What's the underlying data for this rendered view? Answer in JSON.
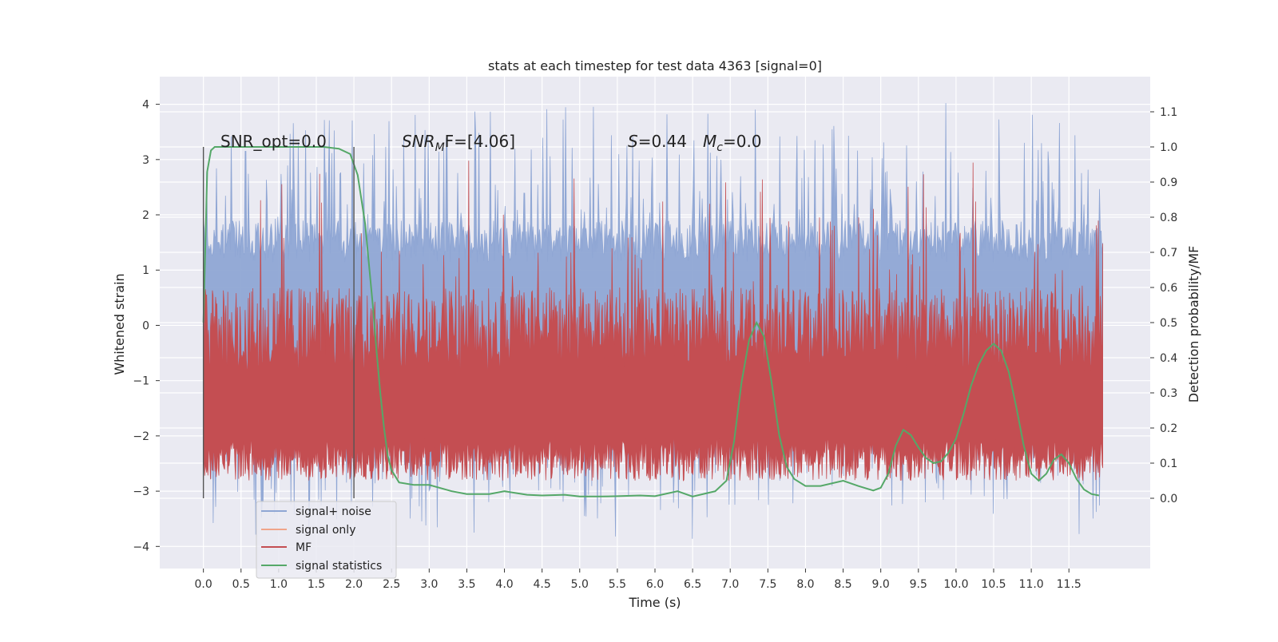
{
  "chart_data": {
    "type": "line",
    "title": "stats at each timestep for test data 4363 [signal=0]",
    "xlabel": "Time (s)",
    "ylabel": "Whitened strain",
    "ylabel_right": "Detection probability/MF",
    "xlim": [
      -0.58,
      12.58
    ],
    "ylim": [
      -4.4,
      4.5
    ],
    "ylim_right": [
      -0.2,
      1.2
    ],
    "x_ticks": [
      "0.0",
      "0.5",
      "1.0",
      "1.5",
      "2.0",
      "2.5",
      "3.0",
      "3.5",
      "4.0",
      "4.5",
      "5.0",
      "5.5",
      "6.0",
      "6.5",
      "7.0",
      "7.5",
      "8.0",
      "8.5",
      "9.0",
      "9.5",
      "10.0",
      "10.5",
      "11.0",
      "11.5"
    ],
    "y_ticks": [
      "4",
      "3",
      "2",
      "1",
      "0",
      "−1",
      "−2",
      "−3",
      "−4"
    ],
    "y_ticks_right": [
      "1.1",
      "1.0",
      "0.9",
      "0.8",
      "0.7",
      "0.6",
      "0.5",
      "0.4",
      "0.3",
      "0.2",
      "0.1",
      "0.0"
    ],
    "grid": true,
    "legend_position": "bottom-left",
    "annotations": {
      "snr_opt": "SNR_opt=0.0",
      "snr_mf_italic": "SNR",
      "snr_mf_sub": "M",
      "snr_mf_rest": "F=[4.06]",
      "s_italic": "S",
      "s_rest": "=0.44",
      "mc_italic": "M",
      "mc_sub": "c",
      "mc_rest": "=0.0"
    },
    "vertical_markers": [
      0.0,
      2.0
    ],
    "noise_envelope": {
      "t_start": 0.0,
      "t_end": 11.95,
      "typical_max": 1.9,
      "typical_min": -1.9,
      "peak_max": 4.1,
      "peak_min": -3.95
    },
    "mf_band": {
      "t_start": 0.0,
      "t_end": 11.95,
      "typical_max": 0.6,
      "typical_min": 0.05,
      "peak_max": 0.98
    },
    "series": [
      {
        "name": "signal+ noise",
        "color": "#8fa6d4"
      },
      {
        "name": "signal only",
        "color": "#f0a58a"
      },
      {
        "name": "MF",
        "color": "#c44e52"
      },
      {
        "name": "signal statistics",
        "color": "#55a868",
        "x": [
          0.0,
          0.05,
          0.1,
          0.15,
          0.25,
          0.4,
          0.8,
          1.2,
          1.6,
          1.8,
          1.95,
          2.05,
          2.15,
          2.25,
          2.3,
          2.35,
          2.4,
          2.45,
          2.5,
          2.6,
          2.8,
          3.0,
          3.3,
          3.5,
          3.8,
          4.0,
          4.3,
          4.5,
          4.8,
          5.0,
          5.3,
          5.5,
          5.8,
          6.0,
          6.3,
          6.5,
          6.8,
          6.95,
          7.05,
          7.15,
          7.25,
          7.35,
          7.45,
          7.55,
          7.65,
          7.75,
          7.85,
          8.0,
          8.2,
          8.5,
          8.7,
          8.9,
          9.0,
          9.1,
          9.2,
          9.3,
          9.4,
          9.5,
          9.6,
          9.7,
          9.8,
          9.9,
          10.0,
          10.1,
          10.2,
          10.3,
          10.4,
          10.5,
          10.6,
          10.7,
          10.8,
          10.9,
          11.0,
          11.1,
          11.2,
          11.3,
          11.4,
          11.5,
          11.6,
          11.7,
          11.8,
          11.9
        ],
        "y": [
          0.5,
          0.93,
          0.99,
          1.0,
          1.0,
          1.0,
          1.0,
          1.0,
          1.0,
          0.995,
          0.98,
          0.92,
          0.78,
          0.55,
          0.42,
          0.3,
          0.2,
          0.12,
          0.08,
          0.045,
          0.038,
          0.038,
          0.02,
          0.012,
          0.012,
          0.02,
          0.01,
          0.008,
          0.01,
          0.005,
          0.005,
          0.006,
          0.008,
          0.006,
          0.02,
          0.005,
          0.02,
          0.05,
          0.16,
          0.33,
          0.45,
          0.5,
          0.46,
          0.33,
          0.18,
          0.09,
          0.055,
          0.035,
          0.035,
          0.05,
          0.035,
          0.022,
          0.03,
          0.07,
          0.15,
          0.195,
          0.18,
          0.145,
          0.115,
          0.1,
          0.105,
          0.13,
          0.17,
          0.24,
          0.32,
          0.38,
          0.42,
          0.44,
          0.42,
          0.36,
          0.26,
          0.15,
          0.07,
          0.05,
          0.07,
          0.11,
          0.125,
          0.1,
          0.055,
          0.025,
          0.012,
          0.008
        ]
      }
    ]
  }
}
